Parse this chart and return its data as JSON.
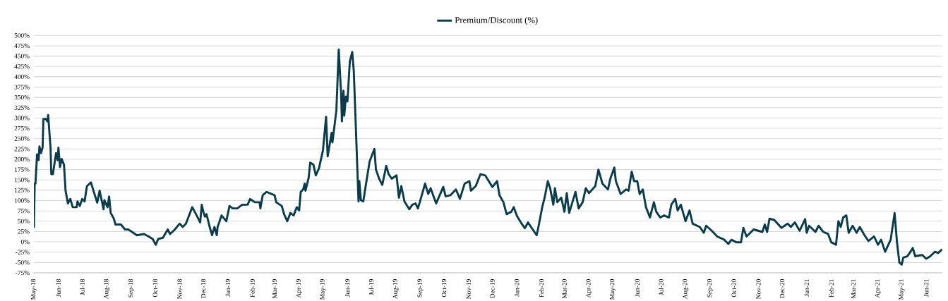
{
  "chart_data": {
    "type": "line",
    "grid": "y",
    "legend": "top",
    "xlim": [
      "2018-05-01",
      "2021-06-21"
    ],
    "ylim": [
      -75,
      500
    ],
    "yticks": [
      {
        "value": -75,
        "label": "-75%"
      },
      {
        "value": -50,
        "label": "-50%"
      },
      {
        "value": -25,
        "label": "-25%"
      },
      {
        "value": 0,
        "label": "0%"
      },
      {
        "value": 25,
        "label": "25%"
      },
      {
        "value": 50,
        "label": "50%"
      },
      {
        "value": 75,
        "label": "75%"
      },
      {
        "value": 100,
        "label": "100%"
      },
      {
        "value": 125,
        "label": "125%"
      },
      {
        "value": 150,
        "label": "150%"
      },
      {
        "value": 175,
        "label": "175%"
      },
      {
        "value": 200,
        "label": "200%"
      },
      {
        "value": 225,
        "label": "225%"
      },
      {
        "value": 250,
        "label": "250%"
      },
      {
        "value": 275,
        "label": "275%"
      },
      {
        "value": 300,
        "label": "300%"
      },
      {
        "value": 325,
        "label": "325%"
      },
      {
        "value": 350,
        "label": "350%"
      },
      {
        "value": 375,
        "label": "375%"
      },
      {
        "value": 400,
        "label": "400%"
      },
      {
        "value": 425,
        "label": "425%"
      },
      {
        "value": 450,
        "label": "450%"
      },
      {
        "value": 475,
        "label": "475%"
      },
      {
        "value": 500,
        "label": "500%"
      }
    ],
    "xticks": [
      {
        "value": "2018-05-01",
        "label": "May-18"
      },
      {
        "value": "2018-06-01",
        "label": "Jun-18"
      },
      {
        "value": "2018-07-01",
        "label": "Jul-18"
      },
      {
        "value": "2018-08-01",
        "label": "Aug-18"
      },
      {
        "value": "2018-09-01",
        "label": "Sep-18"
      },
      {
        "value": "2018-10-01",
        "label": "Oct-18"
      },
      {
        "value": "2018-11-01",
        "label": "Nov-18"
      },
      {
        "value": "2018-12-01",
        "label": "Dec-18"
      },
      {
        "value": "2019-01-01",
        "label": "Jan-19"
      },
      {
        "value": "2019-02-01",
        "label": "Feb-19"
      },
      {
        "value": "2019-03-01",
        "label": "Mar-19"
      },
      {
        "value": "2019-04-01",
        "label": "Apr-19"
      },
      {
        "value": "2019-05-01",
        "label": "May-19"
      },
      {
        "value": "2019-06-01",
        "label": "Jun-19"
      },
      {
        "value": "2019-07-01",
        "label": "Jul-19"
      },
      {
        "value": "2019-08-01",
        "label": "Aug-19"
      },
      {
        "value": "2019-09-01",
        "label": "Sep-19"
      },
      {
        "value": "2019-10-01",
        "label": "Oct-19"
      },
      {
        "value": "2019-11-01",
        "label": "Nov-19"
      },
      {
        "value": "2019-12-01",
        "label": "Dec-19"
      },
      {
        "value": "2020-01-01",
        "label": "Jan-20"
      },
      {
        "value": "2020-02-01",
        "label": "Feb-20"
      },
      {
        "value": "2020-03-01",
        "label": "Mar-20"
      },
      {
        "value": "2020-04-01",
        "label": "Apr-20"
      },
      {
        "value": "2020-05-01",
        "label": "May-20"
      },
      {
        "value": "2020-06-01",
        "label": "Jun-20"
      },
      {
        "value": "2020-07-01",
        "label": "Jul-20"
      },
      {
        "value": "2020-08-01",
        "label": "Aug-20"
      },
      {
        "value": "2020-09-01",
        "label": "Sep-20"
      },
      {
        "value": "2020-10-01",
        "label": "Oct-20"
      },
      {
        "value": "2020-11-01",
        "label": "Nov-20"
      },
      {
        "value": "2020-12-01",
        "label": "Dec-20"
      },
      {
        "value": "2021-01-01",
        "label": "Jan-21"
      },
      {
        "value": "2021-02-01",
        "label": "Feb-21"
      },
      {
        "value": "2021-03-01",
        "label": "Mar-21"
      },
      {
        "value": "2021-04-01",
        "label": "Apr-21"
      },
      {
        "value": "2021-05-01",
        "label": "May-21"
      },
      {
        "value": "2021-06-01",
        "label": "Jun-21"
      }
    ],
    "x": [
      "2018-05-01",
      "2018-05-02",
      "2018-05-03",
      "2018-05-05",
      "2018-05-07",
      "2018-05-08",
      "2018-05-10",
      "2018-05-12",
      "2018-05-13",
      "2018-05-16",
      "2018-05-18",
      "2018-05-19",
      "2018-05-22",
      "2018-05-23",
      "2018-05-25",
      "2018-05-29",
      "2018-05-31",
      "2018-06-01",
      "2018-06-03",
      "2018-06-05",
      "2018-06-08",
      "2018-06-10",
      "2018-06-13",
      "2018-06-16",
      "2018-06-19",
      "2018-06-24",
      "2018-06-25",
      "2018-06-28",
      "2018-07-01",
      "2018-07-04",
      "2018-07-07",
      "2018-07-12",
      "2018-07-17",
      "2018-07-20",
      "2018-07-23",
      "2018-07-28",
      "2018-07-29",
      "2018-08-02",
      "2018-08-04",
      "2018-08-06",
      "2018-08-10",
      "2018-08-12",
      "2018-08-19",
      "2018-08-24",
      "2018-08-28",
      "2018-09-02",
      "2018-09-08",
      "2018-09-17",
      "2018-09-23",
      "2018-09-28",
      "2018-10-02",
      "2018-10-05",
      "2018-10-11",
      "2018-10-17",
      "2018-10-20",
      "2018-10-26",
      "2018-11-01",
      "2018-11-05",
      "2018-11-09",
      "2018-11-12",
      "2018-11-17",
      "2018-11-22",
      "2018-11-27",
      "2018-11-29",
      "2018-12-01",
      "2018-12-03",
      "2018-12-05",
      "2018-12-09",
      "2018-12-12",
      "2018-12-15",
      "2018-12-18",
      "2018-12-19",
      "2018-12-24",
      "2018-12-30",
      "2019-01-03",
      "2019-01-07",
      "2019-01-13",
      "2019-01-19",
      "2019-01-26",
      "2019-01-29",
      "2019-02-04",
      "2019-02-10",
      "2019-02-11",
      "2019-02-14",
      "2019-02-19",
      "2019-02-25",
      "2019-03-01",
      "2019-03-03",
      "2019-03-10",
      "2019-03-13",
      "2019-03-17",
      "2019-03-21",
      "2019-03-25",
      "2019-03-29",
      "2019-04-01",
      "2019-04-03",
      "2019-04-06",
      "2019-04-08",
      "2019-04-09",
      "2019-04-13",
      "2019-04-15",
      "2019-04-19",
      "2019-04-22",
      "2019-04-26",
      "2019-05-01",
      "2019-05-03",
      "2019-05-05",
      "2019-05-07",
      "2019-05-12",
      "2019-05-13",
      "2019-05-18",
      "2019-05-21",
      "2019-05-24",
      "2019-05-25",
      "2019-05-27",
      "2019-05-28",
      "2019-05-30",
      "2019-06-01",
      "2019-06-04",
      "2019-06-07",
      "2019-06-09",
      "2019-06-15",
      "2019-06-16",
      "2019-06-18",
      "2019-06-21",
      "2019-06-24",
      "2019-06-29",
      "2019-07-05",
      "2019-07-07",
      "2019-07-11",
      "2019-07-15",
      "2019-07-20",
      "2019-07-23",
      "2019-07-27",
      "2019-08-02",
      "2019-08-05",
      "2019-08-08",
      "2019-08-12",
      "2019-08-18",
      "2019-08-22",
      "2019-08-26",
      "2019-08-29",
      "2019-09-02",
      "2019-09-07",
      "2019-09-11",
      "2019-09-14",
      "2019-09-21",
      "2019-09-30",
      "2019-10-03",
      "2019-10-09",
      "2019-10-16",
      "2019-10-21",
      "2019-10-27",
      "2019-11-02",
      "2019-11-04",
      "2019-11-10",
      "2019-11-16",
      "2019-11-22",
      "2019-12-01",
      "2019-12-07",
      "2019-12-10",
      "2019-12-15",
      "2019-12-19",
      "2019-12-25",
      "2019-12-28",
      "2020-01-01",
      "2020-01-06",
      "2020-01-11",
      "2020-01-15",
      "2020-01-21",
      "2020-01-26",
      "2020-01-29",
      "2020-02-02",
      "2020-02-05",
      "2020-02-09",
      "2020-02-12",
      "2020-02-16",
      "2020-02-18",
      "2020-02-21",
      "2020-02-26",
      "2020-03-01",
      "2020-03-04",
      "2020-03-07",
      "2020-03-15",
      "2020-03-19",
      "2020-03-24",
      "2020-03-28",
      "2020-04-01",
      "2020-04-09",
      "2020-04-13",
      "2020-04-18",
      "2020-04-25",
      "2020-04-28",
      "2020-05-03",
      "2020-05-05",
      "2020-05-11",
      "2020-05-18",
      "2020-05-21",
      "2020-05-25",
      "2020-05-28",
      "2020-06-01",
      "2020-06-04",
      "2020-06-08",
      "2020-06-12",
      "2020-06-17",
      "2020-06-22",
      "2020-06-25",
      "2020-06-30",
      "2020-07-05",
      "2020-07-11",
      "2020-07-14",
      "2020-07-19",
      "2020-07-22",
      "2020-07-26",
      "2020-08-01",
      "2020-08-06",
      "2020-08-10",
      "2020-08-19",
      "2020-08-24",
      "2020-08-27",
      "2020-09-03",
      "2020-09-10",
      "2020-09-19",
      "2020-09-24",
      "2020-09-28",
      "2020-10-04",
      "2020-10-10",
      "2020-10-13",
      "2020-10-17",
      "2020-10-26",
      "2020-11-06",
      "2020-11-09",
      "2020-11-12",
      "2020-11-15",
      "2020-11-21",
      "2020-11-30",
      "2020-12-08",
      "2020-12-12",
      "2020-12-17",
      "2020-12-23",
      "2020-12-30",
      "2021-01-01",
      "2021-01-04",
      "2021-01-12",
      "2021-01-16",
      "2021-01-22",
      "2021-01-28",
      "2021-02-01",
      "2021-02-07",
      "2021-02-10",
      "2021-02-13",
      "2021-02-16",
      "2021-02-20",
      "2021-02-23",
      "2021-02-28",
      "2021-03-05",
      "2021-03-09",
      "2021-03-15",
      "2021-03-20",
      "2021-03-27",
      "2021-04-01",
      "2021-04-05",
      "2021-04-10",
      "2021-04-17",
      "2021-04-22",
      "2021-04-25",
      "2021-04-28",
      "2021-05-01",
      "2021-05-03",
      "2021-05-08",
      "2021-05-11",
      "2021-05-15",
      "2021-05-18",
      "2021-05-27",
      "2021-06-01",
      "2021-06-06",
      "2021-06-12",
      "2021-06-16",
      "2021-06-21"
    ],
    "series": [
      {
        "name": "Premium/Discount (%)",
        "color": "#0b3c4b",
        "values": [
          34,
          141,
          141,
          212,
          198,
          231,
          215,
          229,
          298,
          298,
          292,
          307,
          229,
          164,
          164,
          215,
          198,
          228,
          181,
          201,
          187,
          124,
          93,
          104,
          84,
          84,
          98,
          87,
          104,
          98,
          135,
          144,
          113,
          95,
          124,
          79,
          101,
          84,
          110,
          70,
          56,
          42,
          42,
          30,
          30,
          24,
          16,
          19,
          13,
          7,
          -7,
          7,
          10,
          30,
          19,
          30,
          44,
          36,
          44,
          59,
          84,
          66,
          47,
          90,
          73,
          61,
          67,
          36,
          16,
          36,
          16,
          36,
          64,
          50,
          87,
          81,
          81,
          90,
          90,
          104,
          96,
          96,
          81,
          113,
          121,
          116,
          113,
          96,
          87,
          67,
          50,
          70,
          64,
          84,
          76,
          121,
          127,
          141,
          124,
          155,
          192,
          187,
          161,
          178,
          221,
          261,
          303,
          207,
          264,
          241,
          318,
          466,
          358,
          292,
          366,
          306,
          352,
          340,
          437,
          460,
          414,
          98,
          147,
          101,
          98,
          135,
          195,
          225,
          175,
          153,
          138,
          184,
          164,
          153,
          161,
          107,
          135,
          98,
          79,
          90,
          93,
          81,
          107,
          141,
          116,
          130,
          93,
          133,
          110,
          113,
          127,
          104,
          141,
          147,
          124,
          135,
          164,
          161,
          133,
          147,
          113,
          96,
          67,
          73,
          84,
          63,
          47,
          33,
          47,
          30,
          16,
          44,
          84,
          107,
          147,
          130,
          90,
          130,
          96,
          107,
          73,
          118,
          70,
          121,
          81,
          96,
          130,
          118,
          135,
          175,
          141,
          127,
          153,
          180,
          147,
          116,
          127,
          124,
          170,
          147,
          147,
          116,
          127,
          84,
          59,
          96,
          73,
          59,
          64,
          59,
          90,
          104,
          76,
          90,
          50,
          76,
          44,
          36,
          22,
          39,
          27,
          13,
          5,
          -5,
          5,
          -1,
          -1,
          34,
          13,
          30,
          24,
          42,
          24,
          56,
          53,
          34,
          44,
          36,
          47,
          27,
          55,
          22,
          39,
          24,
          39,
          24,
          19,
          -1,
          -7,
          50,
          36,
          59,
          64,
          22,
          39,
          22,
          36,
          16,
          2,
          13,
          -7,
          5,
          -24,
          5,
          70,
          -1,
          -50,
          -55,
          -38,
          -35,
          -27,
          -15,
          -35,
          -32,
          -41,
          -35,
          -24,
          -27,
          -18
        ]
      }
    ]
  }
}
